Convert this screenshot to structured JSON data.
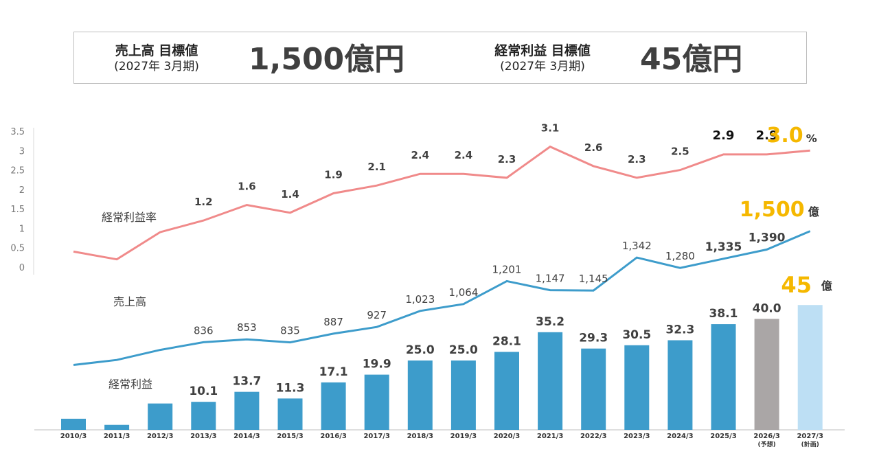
{
  "targets": {
    "sales": {
      "label": "売上高 目標値",
      "period": "(2027年  3月期)",
      "value": "1,500億円"
    },
    "ordinary_profit": {
      "label": "経常利益 目標値",
      "period": "(2027年  3月期)",
      "value": "45億円"
    }
  },
  "colors": {
    "margin_line": "#f08a8a",
    "sales_line": "#3d9ccb",
    "bar_actual": "#3d9ccb",
    "bar_forecast": "#aaa6a6",
    "bar_plan": "#bddff4",
    "highlight": "#f5b800"
  },
  "chart_data": {
    "type": "combo",
    "categories": [
      "2010/3",
      "2011/3",
      "2012/3",
      "2013/3",
      "2014/3",
      "2015/3",
      "2016/3",
      "2017/3",
      "2018/3",
      "2019/3",
      "2020/3",
      "2021/3",
      "2022/3",
      "2023/3",
      "2024/3",
      "2025/3",
      "2026/3",
      "2027/3"
    ],
    "category_sublabels": [
      "",
      "",
      "",
      "",
      "",
      "",
      "",
      "",
      "",
      "",
      "",
      "",
      "",
      "",
      "",
      "",
      "(予想)",
      "(計画)"
    ],
    "series": [
      {
        "name": "経常利益率",
        "type": "line",
        "axis": "left",
        "values": [
          0.4,
          0.2,
          0.9,
          1.2,
          1.6,
          1.4,
          1.9,
          2.1,
          2.4,
          2.4,
          2.3,
          3.1,
          2.6,
          2.3,
          2.5,
          2.9,
          2.9,
          3.0
        ],
        "labels": [
          "",
          "",
          "",
          "1.2",
          "1.6",
          "1.4",
          "1.9",
          "2.1",
          "2.4",
          "2.4",
          "2.3",
          "3.1",
          "2.6",
          "2.3",
          "2.5",
          "2.9",
          "2.9",
          "3.0"
        ],
        "last_unit": "%"
      },
      {
        "name": "売上高",
        "type": "line",
        "axis": "hidden",
        "values": [
          700,
          730,
          790,
          836,
          853,
          835,
          887,
          927,
          1023,
          1064,
          1201,
          1147,
          1145,
          1342,
          1280,
          1335,
          1390,
          1500
        ],
        "labels": [
          "",
          "",
          "",
          "836",
          "853",
          "835",
          "887",
          "927",
          "1,023",
          "1,064",
          "1,201",
          "1,147",
          "1,145",
          "1,342",
          "1,280",
          "1,335",
          "1,390",
          "1,500"
        ],
        "last_unit": "億"
      },
      {
        "name": "経常利益",
        "type": "bar",
        "axis": "hidden",
        "values": [
          4.0,
          1.8,
          9.5,
          10.1,
          13.7,
          11.3,
          17.1,
          19.9,
          25.0,
          25.0,
          28.1,
          35.2,
          29.3,
          30.5,
          32.3,
          38.1,
          40.0,
          45
        ],
        "labels": [
          "",
          "",
          "",
          "10.1",
          "13.7",
          "11.3",
          "17.1",
          "19.9",
          "25.0",
          "25.0",
          "28.1",
          "35.2",
          "29.3",
          "30.5",
          "32.3",
          "38.1",
          "40.0",
          "45"
        ],
        "last_unit": "億"
      }
    ],
    "y_left": {
      "ticks": [
        "0",
        "0.5",
        "1",
        "1.5",
        "2",
        "2.5",
        "3",
        "3.5"
      ],
      "range": [
        0,
        3.5
      ]
    },
    "series_titles": [
      "経常利益率",
      "売上高",
      "経常利益"
    ]
  }
}
